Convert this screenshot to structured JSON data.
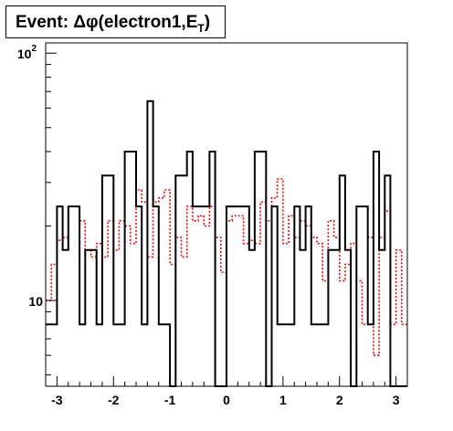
{
  "chart_data": {
    "type": "histogram",
    "title_prefix": "Event: ",
    "title_main": "Δφ(electron1,E",
    "title_sub": "T",
    "title_suffix": ")",
    "x_range": [
      -3.2,
      3.2
    ],
    "y_range": [
      4.5,
      110
    ],
    "y_scale": "log",
    "x_ticks": [
      -3,
      -2,
      -1,
      0,
      1,
      2,
      3
    ],
    "x_tick_labels": [
      "-3",
      "-2",
      "-1",
      "0",
      "1",
      "2",
      "3"
    ],
    "y_ticks": [
      {
        "value": 10,
        "base": "10",
        "exp": ""
      },
      {
        "value": 100,
        "base": "10",
        "exp": "2"
      }
    ],
    "series": [
      {
        "color": "#000000",
        "line_style": "solid",
        "bin_edges": [
          -3.2,
          -3.0,
          -2.9,
          -2.8,
          -2.6,
          -2.5,
          -2.3,
          -2.2,
          -2.0,
          -1.8,
          -1.6,
          -1.5,
          -1.4,
          -1.3,
          -1.2,
          -1.0,
          -0.9,
          -0.7,
          -0.6,
          -0.3,
          -0.2,
          0.0,
          0.1,
          0.4,
          0.5,
          0.7,
          0.8,
          0.9,
          1.2,
          1.3,
          1.4,
          1.5,
          1.6,
          1.8,
          2.0,
          2.1,
          2.2,
          2.3,
          2.5,
          2.6,
          2.7,
          2.8,
          2.9,
          3.0,
          3.2
        ],
        "values": [
          8,
          24,
          16,
          24,
          8,
          16,
          8,
          32,
          8,
          40,
          24,
          8,
          64,
          24,
          8,
          4,
          32,
          40,
          24,
          40,
          4,
          24,
          24,
          16,
          40,
          4,
          24,
          8,
          24,
          16,
          24,
          8,
          8,
          16,
          32,
          16,
          4,
          24,
          8,
          40,
          16,
          32,
          4,
          4
        ]
      },
      {
        "color": "#ff0000",
        "line_style": "dotted",
        "bin_edges": [
          -3.2,
          -3.1,
          -3.0,
          -2.9,
          -2.8,
          -2.6,
          -2.5,
          -2.4,
          -2.3,
          -2.2,
          -2.1,
          -2.0,
          -1.9,
          -1.8,
          -1.7,
          -1.6,
          -1.5,
          -1.4,
          -1.3,
          -1.2,
          -1.1,
          -1.0,
          -0.9,
          -0.8,
          -0.7,
          -0.6,
          -0.5,
          -0.4,
          -0.3,
          -0.2,
          -0.1,
          0.0,
          0.1,
          0.2,
          0.3,
          0.4,
          0.5,
          0.6,
          0.7,
          0.8,
          0.9,
          1.0,
          1.1,
          1.2,
          1.3,
          1.4,
          1.5,
          1.6,
          1.7,
          1.8,
          1.9,
          2.0,
          2.1,
          2.2,
          2.3,
          2.4,
          2.5,
          2.6,
          2.7,
          2.8,
          2.9,
          3.0,
          3.1,
          3.2
        ],
        "values": [
          10,
          14,
          17.5,
          18,
          24,
          21,
          16,
          15,
          17,
          15,
          21,
          16,
          21,
          20,
          17,
          28,
          25,
          15,
          25,
          26,
          28,
          14,
          18,
          15,
          24,
          21,
          22,
          20,
          24,
          18,
          13,
          21,
          22,
          22,
          17,
          17.5,
          17,
          25,
          21,
          26,
          31,
          17,
          22,
          18,
          21,
          20,
          18,
          17,
          12,
          21,
          18,
          12,
          14,
          17,
          12,
          8,
          18,
          6,
          18,
          23,
          8,
          16,
          8
        ]
      }
    ]
  }
}
